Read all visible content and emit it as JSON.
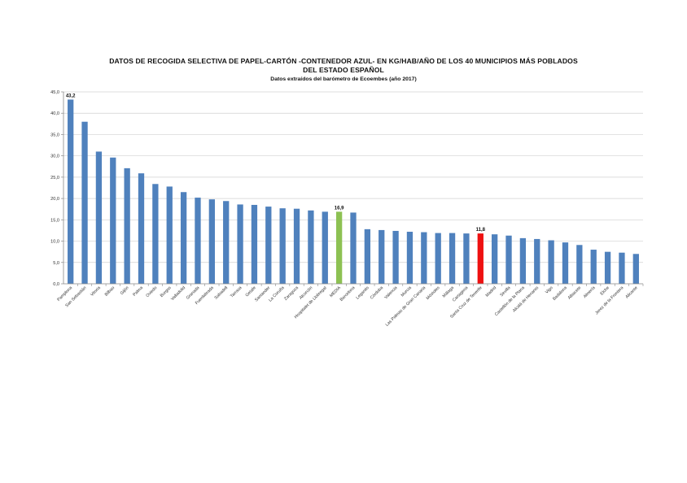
{
  "chart_data": {
    "type": "bar",
    "title_line1": "DATOS DE RECOGIDA SELECTIVA DE PAPEL-CARTÓN -CONTENEDOR AZUL- EN KG/HAB/AÑO DE LOS 40 MUNICIPIOS MÁS POBLADOS",
    "title_line2": "DEL ESTADO ESPAÑOL",
    "subtitle": "Datos extraídos del barómetro de Ecoembes (año 2017)",
    "xlabel": "",
    "ylabel": "",
    "ylim": [
      0,
      45
    ],
    "y_ticks": [
      "0,0",
      "5,0",
      "10,0",
      "15,0",
      "20,0",
      "25,0",
      "30,0",
      "35,0",
      "40,0",
      "45,0"
    ],
    "grid": true,
    "legend": "none",
    "colors": {
      "default": "#4f81bd",
      "media": "#8dc153",
      "highlight": "#ee1111"
    },
    "categories": [
      "Pamplona",
      "San Sebastián",
      "Vitoria",
      "Bilbao",
      "Gijón",
      "Palma",
      "Oviedo",
      "Burgos",
      "Valladolid",
      "Granada",
      "Fuenlabrada",
      "Sabadell",
      "Tarrasa",
      "Getafe",
      "Santander",
      "La Coruña",
      "Zaragoza",
      "Alcorcón",
      "Hospitalet de Llobregat",
      "MEDIA",
      "Barcelona",
      "Leganés",
      "Córdoba",
      "Valencia",
      "Murcia",
      "Las Palmas de Gran Canaria",
      "Móstoles",
      "Málaga",
      "Cartagena",
      "Santa Cruz de Tenerife",
      "Madrid",
      "Sevilla",
      "Castellón de la Plana",
      "Alcalá de Henares",
      "Vigo",
      "Badalona",
      "Albacete",
      "Almería",
      "Elche",
      "Jerez de la Frontera",
      "Alicante"
    ],
    "values": [
      43.2,
      38.0,
      31.0,
      29.6,
      27.1,
      25.9,
      23.4,
      22.8,
      21.5,
      20.2,
      19.8,
      19.4,
      18.6,
      18.5,
      18.1,
      17.7,
      17.6,
      17.2,
      16.9,
      16.9,
      16.7,
      12.8,
      12.6,
      12.4,
      12.2,
      12.1,
      11.9,
      11.9,
      11.8,
      11.8,
      11.6,
      11.3,
      10.7,
      10.5,
      10.2,
      9.7,
      9.1,
      8.0,
      7.5,
      7.3,
      7.0
    ],
    "bar_colors": [
      "default",
      "default",
      "default",
      "default",
      "default",
      "default",
      "default",
      "default",
      "default",
      "default",
      "default",
      "default",
      "default",
      "default",
      "default",
      "default",
      "default",
      "default",
      "default",
      "media",
      "default",
      "default",
      "default",
      "default",
      "default",
      "default",
      "default",
      "default",
      "default",
      "highlight",
      "default",
      "default",
      "default",
      "default",
      "default",
      "default",
      "default",
      "default",
      "default",
      "default",
      "default"
    ],
    "data_labels": [
      {
        "index": 0,
        "text": "43,2"
      },
      {
        "index": 19,
        "text": "16,9"
      },
      {
        "index": 29,
        "text": "11,8"
      }
    ]
  }
}
